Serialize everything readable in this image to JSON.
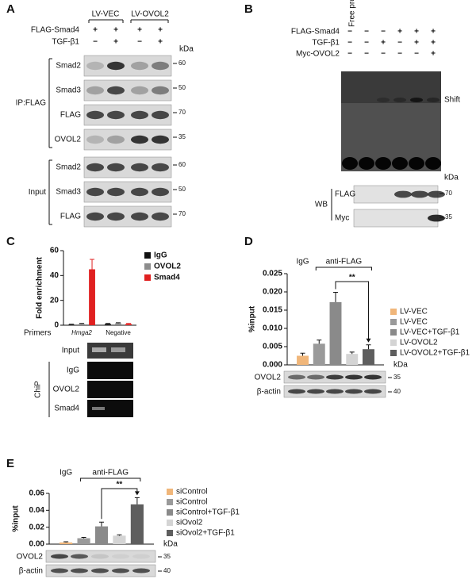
{
  "panel_a": {
    "label": "A",
    "groups": [
      "LV-VEC",
      "LV-OVOL2"
    ],
    "rows": [
      {
        "name": "FLAG-Smad4",
        "signs": [
          "+",
          "+",
          "+",
          "+"
        ]
      },
      {
        "name": "TGF-β1",
        "signs": [
          "−",
          "+",
          "−",
          "+"
        ]
      }
    ],
    "unit": "kDa",
    "sections": [
      {
        "name": "IP:FLAG",
        "blots": [
          {
            "name": "Smad2",
            "mw": 60
          },
          {
            "name": "Smad3",
            "mw": 50
          },
          {
            "name": "FLAG",
            "mw": 70
          },
          {
            "name": "OVOL2",
            "mw": 35
          }
        ]
      },
      {
        "name": "Input",
        "blots": [
          {
            "name": "Smad2",
            "mw": 60
          },
          {
            "name": "Smad3",
            "mw": 50
          },
          {
            "name": "FLAG",
            "mw": 70
          }
        ]
      }
    ]
  },
  "panel_b": {
    "label": "B",
    "lane_label": "Free probe",
    "rows": [
      {
        "name": "FLAG-Smad4",
        "signs": [
          "−",
          "−",
          "−",
          "+",
          "+",
          "+"
        ]
      },
      {
        "name": "TGF-β1",
        "signs": [
          "−",
          "−",
          "+",
          "−",
          "+",
          "+"
        ]
      },
      {
        "name": "Myc-OVOL2",
        "signs": [
          "−",
          "−",
          "−",
          "−",
          "−",
          "+"
        ]
      }
    ],
    "band_label": "Shift",
    "unit": "kDa",
    "wb": {
      "name": "WB",
      "blots": [
        {
          "name": "FLAG",
          "mw": 70
        },
        {
          "name": "Myc",
          "mw": 35
        }
      ]
    }
  },
  "panel_c": {
    "label": "C",
    "gel": {
      "input": "Input",
      "chip": "ChiP",
      "rows": [
        "IgG",
        "OVOL2",
        "Smad4"
      ]
    }
  },
  "panel_d": {
    "label": "D",
    "unit": "kDa",
    "blots": [
      {
        "name": "OVOL2",
        "mw": 35
      },
      {
        "name": "β-actin",
        "mw": 40
      }
    ]
  },
  "panel_e": {
    "label": "E",
    "unit": "kDa",
    "blots": [
      {
        "name": "OVOL2",
        "mw": 35
      },
      {
        "name": "β-actin",
        "mw": 40
      }
    ]
  },
  "chart_data": [
    {
      "type": "bar",
      "ylabel": "Fold enrichment",
      "xlabel": "Primers",
      "categories": [
        "Hmga2",
        "Negative"
      ],
      "series": [
        {
          "name": "IgG",
          "color": "#111111",
          "values": [
            0.5,
            1
          ],
          "errors": [
            0.3,
            0.4
          ]
        },
        {
          "name": "OVOL2",
          "color": "#8c8c8c",
          "values": [
            1,
            1.5
          ],
          "errors": [
            0.4,
            0.5
          ]
        },
        {
          "name": "Smad4",
          "color": "#e02020",
          "values": [
            45,
            1
          ],
          "errors": [
            8,
            0.4
          ]
        }
      ],
      "ylim": [
        0,
        60
      ],
      "yticks": [
        0,
        20,
        40,
        60
      ],
      "legend": "right"
    },
    {
      "type": "bar",
      "ylabel": "%input",
      "categories": [
        null
      ],
      "series": [
        {
          "name": "LV-VEC",
          "color": "#f0b67a",
          "values": [
            0.0025
          ],
          "errors": [
            0.0007
          ]
        },
        {
          "name": "LV-VEC",
          "color": "#9a9a9a",
          "values": [
            0.0058
          ],
          "errors": [
            0.001
          ]
        },
        {
          "name": "LV-VEC+TGF-β1",
          "color": "#8a8a8a",
          "values": [
            0.0172
          ],
          "errors": [
            0.0027
          ]
        },
        {
          "name": "LV-OVOL2",
          "color": "#d4d4d4",
          "values": [
            0.003
          ],
          "errors": [
            0.0005
          ]
        },
        {
          "name": "LV-OVOL2+TGF-β1",
          "color": "#5e5e5e",
          "values": [
            0.0043
          ],
          "errors": [
            0.0012
          ]
        }
      ],
      "ylim": [
        0,
        0.025
      ],
      "yticks": [
        {
          "value": 0,
          "label": "0.000"
        },
        {
          "value": 0.005,
          "label": "0.005"
        },
        {
          "value": 0.01,
          "label": "0.010"
        },
        {
          "value": 0.015,
          "label": "0.015"
        },
        {
          "value": 0.02,
          "label": "0.020"
        },
        {
          "value": 0.025,
          "label": "0.025"
        }
      ],
      "legend": "right",
      "annotations": [
        "IgG",
        "anti-FLAG",
        "**"
      ]
    },
    {
      "type": "bar",
      "ylabel": "%input",
      "categories": [
        null
      ],
      "series": [
        {
          "name": "siControl",
          "color": "#f0b67a",
          "values": [
            0.002
          ],
          "errors": [
            0.0008
          ]
        },
        {
          "name": "siControl",
          "color": "#9a9a9a",
          "values": [
            0.007
          ],
          "errors": [
            0.001
          ]
        },
        {
          "name": "siControl+TGF-β1",
          "color": "#8a8a8a",
          "values": [
            0.021
          ],
          "errors": [
            0.005
          ]
        },
        {
          "name": "siOvol2",
          "color": "#d4d4d4",
          "values": [
            0.01
          ],
          "errors": [
            0.001
          ]
        },
        {
          "name": "siOvol2+TGF-β1",
          "color": "#5e5e5e",
          "values": [
            0.047
          ],
          "errors": [
            0.008
          ]
        }
      ],
      "ylim": [
        0,
        0.06
      ],
      "yticks": [
        {
          "value": 0,
          "label": "0.00"
        },
        {
          "value": 0.02,
          "label": "0.02"
        },
        {
          "value": 0.04,
          "label": "0.04"
        },
        {
          "value": 0.06,
          "label": "0.06"
        }
      ],
      "legend": "right",
      "annotations": [
        "IgG",
        "anti-FLAG",
        "**"
      ]
    }
  ]
}
